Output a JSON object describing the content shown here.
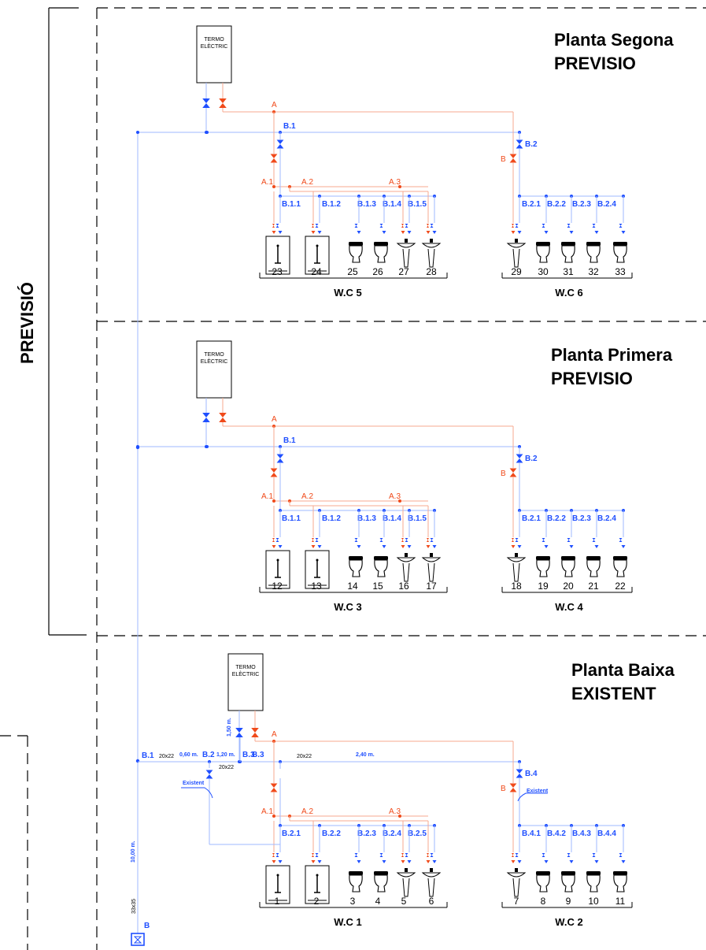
{
  "side_label": "PREVISIÓ",
  "floors": [
    {
      "id": "segona",
      "title_line1": "Planta Segona",
      "title_line2": "PREVISIO",
      "termo_line1": "TERMO",
      "termo_line2": "ELÈCTRIC",
      "hot_main": "A",
      "cold_main": "B.1",
      "hot_branch2": "B",
      "cold_branch2": "B.2",
      "hot_labels": [
        "A.1",
        "A.2",
        "A.3"
      ],
      "group1_labels": [
        "B.1.1",
        "B.1.2",
        "B.1.3",
        "B.1.4",
        "B.1.5"
      ],
      "group2_labels": [
        "B.2.1",
        "B.2.2",
        "B.2.3",
        "B.2.4"
      ],
      "group1_numbers": [
        "23",
        "24",
        "25",
        "26",
        "27",
        "28"
      ],
      "group2_numbers": [
        "29",
        "30",
        "31",
        "32",
        "33"
      ],
      "wc1": "W.C 5",
      "wc2": "W.C 6"
    },
    {
      "id": "primera",
      "title_line1": "Planta Primera",
      "title_line2": "PREVISIO",
      "termo_line1": "TERMO",
      "termo_line2": "ELÈCTRIC",
      "hot_main": "A",
      "cold_main": "B.1",
      "hot_branch2": "B",
      "cold_branch2": "B.2",
      "hot_labels": [
        "A.1",
        "A.2",
        "A.3"
      ],
      "group1_labels": [
        "B.1.1",
        "B.1.2",
        "B.1.3",
        "B.1.4",
        "B.1.5"
      ],
      "group2_labels": [
        "B.2.1",
        "B.2.2",
        "B.2.3",
        "B.2.4"
      ],
      "group1_numbers": [
        "12",
        "13",
        "14",
        "15",
        "16",
        "17"
      ],
      "group2_numbers": [
        "18",
        "19",
        "20",
        "21",
        "22"
      ],
      "wc1": "W.C 3",
      "wc2": "W.C 4"
    },
    {
      "id": "baixa",
      "title_line1": "Planta Baixa",
      "title_line2": "EXISTENT",
      "termo_line1": "TERMO",
      "termo_line2": "ELÈCTRIC",
      "hot_main": "A",
      "cold_main": "B.3",
      "hot_branch2": "B",
      "cold_branch2": "B.4",
      "hot_labels": [
        "A.1",
        "A.2",
        "A.3"
      ],
      "group1_labels": [
        "B.2.1",
        "B.2.2",
        "B.2.3",
        "B.2.4",
        "B.2.5"
      ],
      "group2_labels": [
        "B.4.1",
        "B.4.2",
        "B.4.3",
        "B.4.4"
      ],
      "group1_numbers": [
        "1",
        "2",
        "3",
        "4",
        "5",
        "6"
      ],
      "group2_numbers": [
        "7",
        "8",
        "9",
        "10",
        "11"
      ],
      "wc1": "W.C 1",
      "wc2": "W.C 2"
    }
  ],
  "ground_annotations": {
    "b1": "B.1",
    "size_a": "20x22",
    "len_a": "0,60 m.",
    "b2": "B.2",
    "len_b": "1,20 m.",
    "b3": "B.3",
    "size_b": "20x22",
    "size_c": "20x22",
    "len_c": "2,40 m.",
    "vert_len": "1,50 m.",
    "existent_1": "Existent",
    "existent_2": "Existent",
    "riser_len": "10,00 m.",
    "riser_size": "33x35",
    "meter_label": "B"
  },
  "colors": {
    "cold": "#1f4fff",
    "hot": "#f04a1a",
    "cold_pipe": "#9fb8ff",
    "hot_pipe": "#f7a98f",
    "frame": "#000000"
  }
}
